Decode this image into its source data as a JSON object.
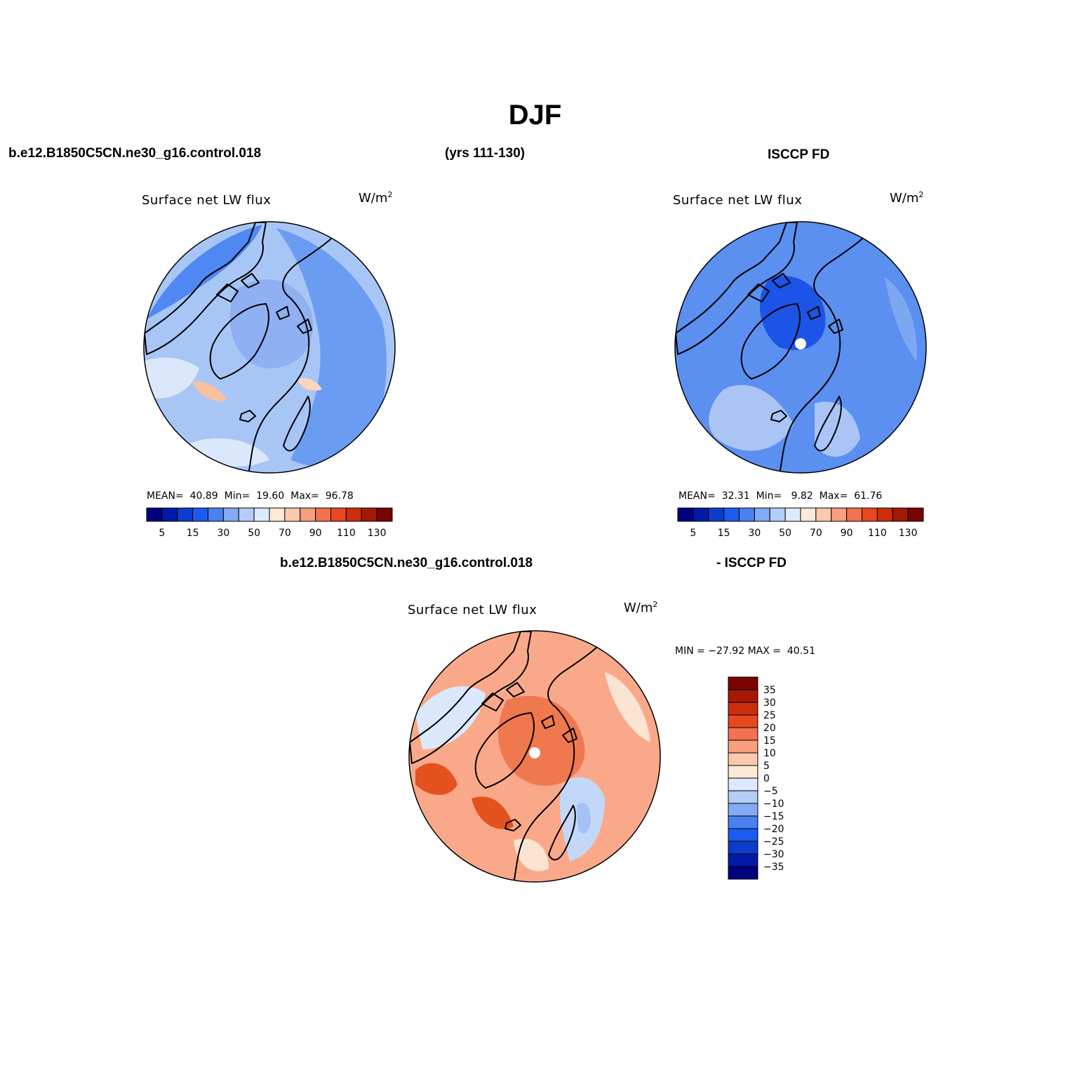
{
  "figure": {
    "title": "DJF",
    "case_name": "b.e12.B1850C5CN.ne30_g16.control.018",
    "years": "(yrs 111-130)",
    "obs_name": "ISCCP FD",
    "diff_case_name": "b.e12.B1850C5CN.ne30_g16.control.018",
    "diff_obs_name": "- ISCCP FD"
  },
  "panels": [
    {
      "id": "model",
      "title": "Surface net LW flux",
      "units_base": "W/m",
      "units_sup": "2",
      "mean_label": "MEAN=",
      "mean": "40.89",
      "min_label": "Min=",
      "min": "19.60",
      "max_label": "Max=",
      "max": "96.78",
      "field": "mixed-blue"
    },
    {
      "id": "obs",
      "title": "Surface net LW flux",
      "units_base": "W/m",
      "units_sup": "2",
      "mean_label": "MEAN=",
      "mean": "32.31",
      "min_label": "Min=",
      "min": "9.82",
      "max_label": "Max=",
      "max": "61.76",
      "field": "deep-blue"
    },
    {
      "id": "diff",
      "title": "Surface net LW flux",
      "units_base": "W/m",
      "units_sup": "2",
      "minmax_text": "MIN = −27.92 MAX =  40.51",
      "field": "red"
    }
  ],
  "colorbar_abs": {
    "colors": [
      "#00007f",
      "#0019a7",
      "#0d3ccd",
      "#1c5bf0",
      "#4a80f0",
      "#83aaf3",
      "#b4cdf7",
      "#ddeafb",
      "#fde9d8",
      "#fbc9ad",
      "#f79f7e",
      "#f2724f",
      "#e9481f",
      "#cc2d0d",
      "#a41904",
      "#7a0400"
    ],
    "labels": [
      "5",
      "15",
      "30",
      "50",
      "70",
      "90",
      "110",
      "130"
    ]
  },
  "colorbar_diff": {
    "colors": [
      "#7a0400",
      "#a41904",
      "#cc2d0d",
      "#e9481f",
      "#f2724f",
      "#f79f7e",
      "#fbc9ad",
      "#fde9d8",
      "#ddeafb",
      "#b4cdf7",
      "#83aaf3",
      "#4a80f0",
      "#1c5bf0",
      "#0d3ccd",
      "#0019a7",
      "#00007f"
    ],
    "labels": [
      "35",
      "30",
      "25",
      "20",
      "15",
      "10",
      "5",
      "0",
      "−5",
      "−10",
      "−15",
      "−20",
      "−25",
      "−30",
      "−35"
    ]
  }
}
